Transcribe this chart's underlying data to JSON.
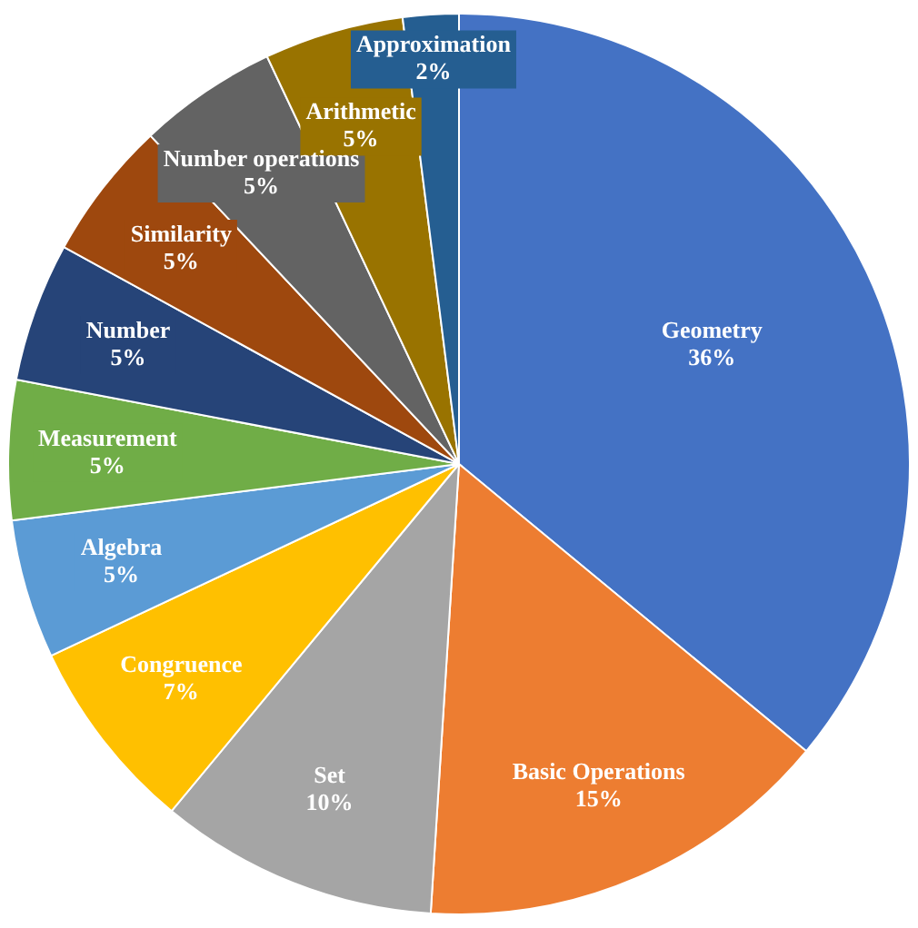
{
  "chart_data": {
    "type": "pie",
    "categories": [
      "Geometry",
      "Basic Operations",
      "Set",
      "Congruence",
      "Algebra",
      "Measurement",
      "Number",
      "Similarity",
      "Number operations",
      "Arithmetic",
      "Approximation"
    ],
    "values": [
      36,
      15,
      10,
      7,
      5,
      5,
      5,
      5,
      5,
      5,
      2
    ],
    "value_labels": [
      "36%",
      "15%",
      "10%",
      "7%",
      "5%",
      "5%",
      "5%",
      "5%",
      "5%",
      "5%",
      "2%"
    ],
    "colors": [
      "#4472c4",
      "#ed7d31",
      "#a5a5a5",
      "#ffc000",
      "#5b9bd5",
      "#70ad47",
      "#264478",
      "#9e480e",
      "#636363",
      "#997300",
      "#255e91"
    ],
    "legend": false
  }
}
